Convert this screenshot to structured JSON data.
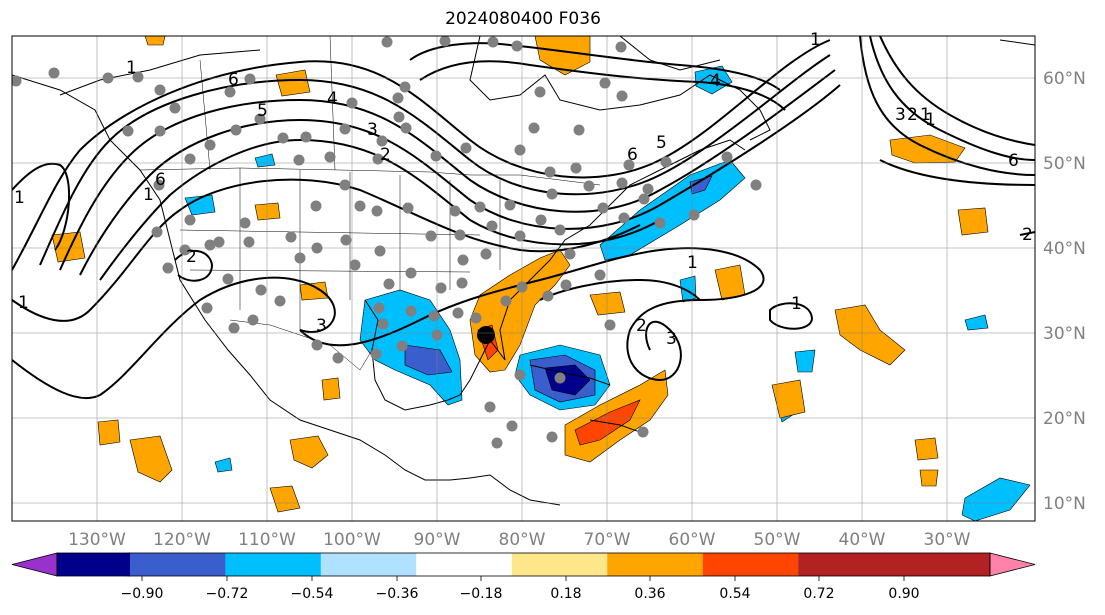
{
  "title": "2024080400 F036",
  "lon_labels": [
    "130°W",
    "120°W",
    "110°W",
    "100°W",
    "90°W",
    "80°W",
    "70°W",
    "60°W",
    "50°W",
    "40°W",
    "30°W"
  ],
  "lat_labels": [
    "60°N",
    "50°N",
    "40°N",
    "30°N",
    "20°N",
    "10°N"
  ],
  "colorbar": {
    "colors": [
      "#9932cc",
      "#00008b",
      "#3a5fcd",
      "#00bfff",
      "#b0e2ff",
      "#ffffff",
      "#fee68b",
      "#ffa500",
      "#ff4500",
      "#b22222",
      "#ff82ab"
    ],
    "ticks": [
      "−0.90",
      "−0.72",
      "−0.54",
      "−0.36",
      "−0.18",
      "0.18",
      "0.36",
      "0.54",
      "0.72",
      "0.90"
    ]
  },
  "contour_labels": [
    "1",
    "6",
    "5",
    "4",
    "3",
    "2",
    "1",
    "6",
    "5",
    "4",
    "3",
    "2",
    "1",
    "6",
    "1",
    "2",
    "3",
    "1",
    "3",
    "2",
    "1",
    "1",
    "2",
    "1",
    "1",
    "6"
  ],
  "marker_color": "#808080",
  "highlight_color": "#000000"
}
